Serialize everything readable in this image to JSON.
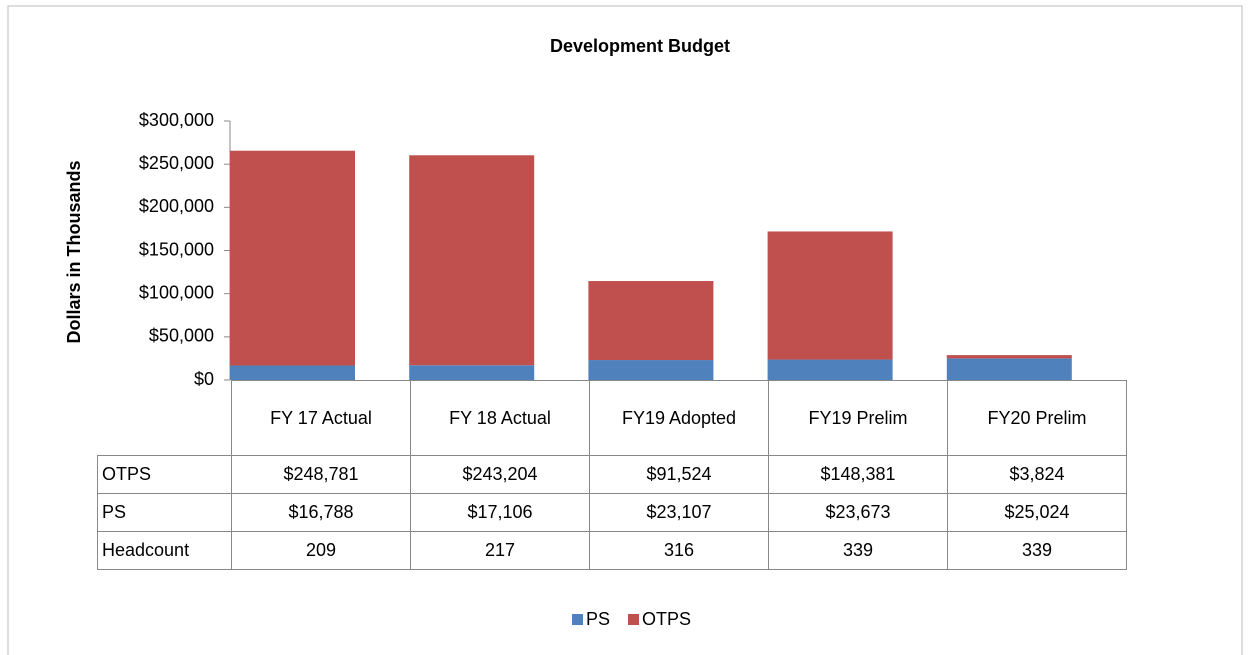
{
  "chart_data": {
    "type": "bar",
    "stacked": true,
    "title": "Development Budget",
    "y_label": "Dollars in Thousands",
    "categories": [
      "FY 17 Actual",
      "FY 18 Actual",
      "FY19 Adopted",
      "FY19 Prelim",
      "FY20 Prelim"
    ],
    "series": [
      {
        "name": "PS",
        "color": "#4f81bd",
        "values": [
          16788,
          17106,
          23107,
          23673,
          25024
        ],
        "value_labels": [
          "$16,788",
          "$17,106",
          "$23,107",
          "$23,673",
          "$25,024"
        ]
      },
      {
        "name": "OTPS",
        "color": "#c0504d",
        "values": [
          248781,
          243204,
          91524,
          148381,
          3824
        ],
        "value_labels": [
          "$248,781",
          "$243,204",
          "$91,524",
          "$148,381",
          "$3,824"
        ]
      }
    ],
    "headcount": {
      "name": "Headcount",
      "values": [
        209,
        217,
        316,
        339,
        339
      ]
    },
    "ylim": [
      0,
      300000
    ],
    "yticks": [
      {
        "value": 0,
        "label": "$0"
      },
      {
        "value": 50000,
        "label": "$50,000"
      },
      {
        "value": 100000,
        "label": "$100,000"
      },
      {
        "value": 150000,
        "label": "$150,000"
      },
      {
        "value": 200000,
        "label": "$200,000"
      },
      {
        "value": 250000,
        "label": "$250,000"
      },
      {
        "value": 300000,
        "label": "$300,000"
      }
    ],
    "legend": "bottom"
  }
}
